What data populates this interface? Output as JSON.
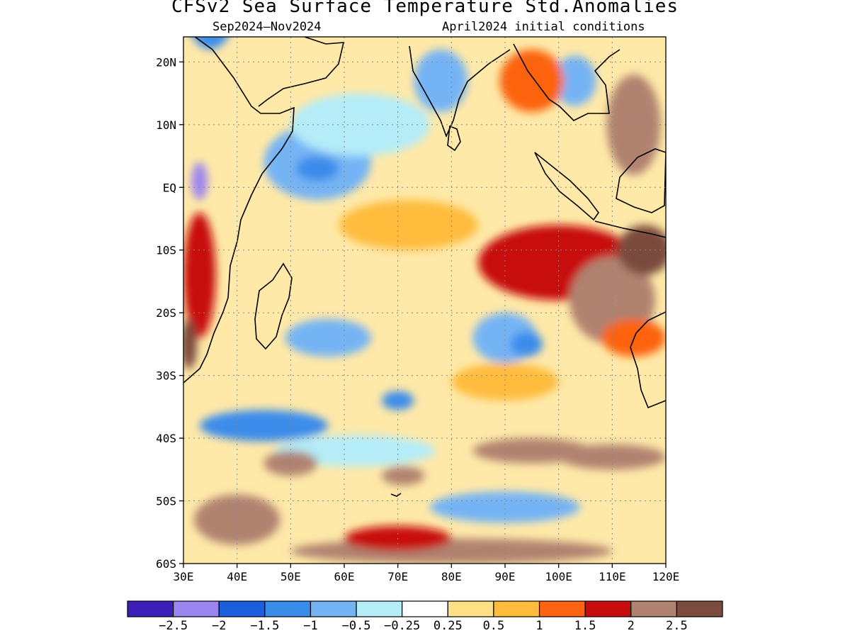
{
  "title": "CFSv2 Sea Surface Temperature Std.Anomalies",
  "subtitle_left": "Sep2024–Nov2024",
  "subtitle_right": "April2024 initial conditions",
  "map": {
    "lon_range": [
      30,
      120
    ],
    "lat_range": [
      -60,
      24
    ],
    "lat_labels": [
      {
        "lat": 20,
        "text": "20N"
      },
      {
        "lat": 10,
        "text": "10N"
      },
      {
        "lat": 0,
        "text": "EQ"
      },
      {
        "lat": -10,
        "text": "10S"
      },
      {
        "lat": -20,
        "text": "20S"
      },
      {
        "lat": -30,
        "text": "30S"
      },
      {
        "lat": -40,
        "text": "40S"
      },
      {
        "lat": -50,
        "text": "50S"
      },
      {
        "lat": -60,
        "text": "60S"
      }
    ],
    "lon_labels": [
      {
        "lon": 30,
        "text": "30E"
      },
      {
        "lon": 40,
        "text": "40E"
      },
      {
        "lon": 50,
        "text": "50E"
      },
      {
        "lon": 60,
        "text": "60E"
      },
      {
        "lon": 70,
        "text": "70E"
      },
      {
        "lon": 80,
        "text": "80E"
      },
      {
        "lon": 90,
        "text": "90E"
      },
      {
        "lon": 100,
        "text": "100E"
      },
      {
        "lon": 110,
        "text": "110E"
      },
      {
        "lon": 120,
        "text": "120E"
      }
    ]
  },
  "colorbar": {
    "colors": [
      "#3b1fb8",
      "#9b85f0",
      "#1c5fdc",
      "#3a8ceb",
      "#74b4f4",
      "#b4ecf8",
      "#ffffff",
      "#ffe084",
      "#ffbc3c",
      "#fd6310",
      "#c80b0b",
      "#b08270",
      "#7a4b3e"
    ],
    "labels": [
      "-2.5",
      "-2",
      "-1.5",
      "-1",
      "-0.5",
      "-0.25",
      "0.25",
      "0.5",
      "1",
      "1.5",
      "2",
      "2.5"
    ]
  },
  "anomaly_regions": [
    {
      "lon": 35,
      "lat": 30,
      "w": 10,
      "h": 16,
      "level": -1.5
    },
    {
      "lon": 33,
      "lat": 1,
      "w": 3,
      "h": 6,
      "level": -2.5
    },
    {
      "lon": 55,
      "lat": 4,
      "w": 20,
      "h": 12,
      "level": -1
    },
    {
      "lon": 55,
      "lat": 3,
      "w": 8,
      "h": 4,
      "level": -1.5
    },
    {
      "lon": 63,
      "lat": 10,
      "w": 26,
      "h": 10,
      "level": -0.5
    },
    {
      "lon": 78,
      "lat": 17,
      "w": 10,
      "h": 10,
      "level": -1
    },
    {
      "lon": 103,
      "lat": 17,
      "w": 8,
      "h": 8,
      "level": -1
    },
    {
      "lon": 72,
      "lat": -6,
      "w": 26,
      "h": 8,
      "level": 0.5
    },
    {
      "lon": 100,
      "lat": -12,
      "w": 30,
      "h": 12,
      "level": 1.5
    },
    {
      "lon": 110,
      "lat": -18,
      "w": 16,
      "h": 14,
      "level": 2
    },
    {
      "lon": 116,
      "lat": -10,
      "w": 10,
      "h": 8,
      "level": 2.5
    },
    {
      "lon": 114,
      "lat": 10,
      "w": 10,
      "h": 16,
      "level": 2
    },
    {
      "lon": 95,
      "lat": 17,
      "w": 12,
      "h": 10,
      "level": 1
    },
    {
      "lon": 33,
      "lat": -14,
      "w": 6,
      "h": 20,
      "level": 1.5
    },
    {
      "lon": 31,
      "lat": -25,
      "w": 3,
      "h": 8,
      "level": 2.5
    },
    {
      "lon": 57,
      "lat": -24,
      "w": 16,
      "h": 6,
      "level": -1
    },
    {
      "lon": 90,
      "lat": -24,
      "w": 12,
      "h": 8,
      "level": -1
    },
    {
      "lon": 94,
      "lat": -25,
      "w": 6,
      "h": 4,
      "level": -1.5
    },
    {
      "lon": 45,
      "lat": -38,
      "w": 24,
      "h": 5,
      "level": -1.5
    },
    {
      "lon": 70,
      "lat": -34,
      "w": 6,
      "h": 3,
      "level": -1.5
    },
    {
      "lon": 62,
      "lat": -42,
      "w": 30,
      "h": 5,
      "level": -0.5
    },
    {
      "lon": 95,
      "lat": -42,
      "w": 22,
      "h": 4,
      "level": 2
    },
    {
      "lon": 110,
      "lat": -43,
      "w": 20,
      "h": 4,
      "level": 2
    },
    {
      "lon": 50,
      "lat": -44,
      "w": 10,
      "h": 4,
      "level": 2
    },
    {
      "lon": 71,
      "lat": -46,
      "w": 8,
      "h": 3,
      "level": 2
    },
    {
      "lon": 40,
      "lat": -53,
      "w": 16,
      "h": 8,
      "level": 2
    },
    {
      "lon": 90,
      "lat": -51,
      "w": 28,
      "h": 5,
      "level": -1
    },
    {
      "lon": 80,
      "lat": -58,
      "w": 60,
      "h": 4,
      "level": 2
    },
    {
      "lon": 70,
      "lat": -56,
      "w": 20,
      "h": 4,
      "level": 1.5
    },
    {
      "lon": 90,
      "lat": -31,
      "w": 20,
      "h": 6,
      "level": 0.5
    },
    {
      "lon": 114,
      "lat": -24,
      "w": 12,
      "h": 6,
      "level": 1
    }
  ]
}
